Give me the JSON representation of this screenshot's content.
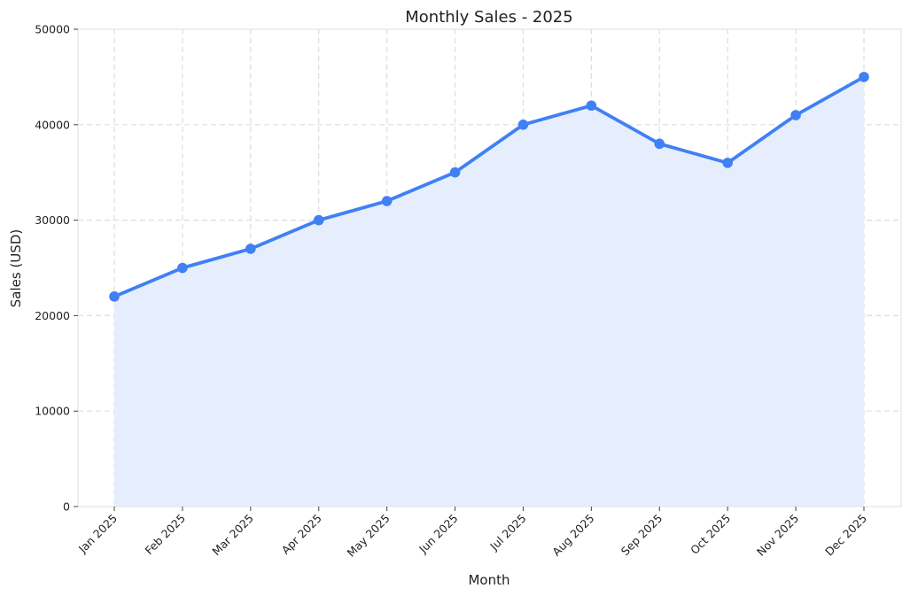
{
  "chart_data": {
    "type": "line",
    "title": "Monthly Sales - 2025",
    "xlabel": "Month",
    "ylabel": "Sales (USD)",
    "categories": [
      "Jan 2025",
      "Feb 2025",
      "Mar 2025",
      "Apr 2025",
      "May 2025",
      "Jun 2025",
      "Jul 2025",
      "Aug 2025",
      "Sep 2025",
      "Oct 2025",
      "Nov 2025",
      "Dec 2025"
    ],
    "series": [
      {
        "values": [
          22000,
          25000,
          27000,
          30000,
          32000,
          35000,
          40000,
          42000,
          38000,
          36000,
          41000,
          45000
        ],
        "color": "#4080f5",
        "fill": "#e6eefd",
        "marker": "circle"
      }
    ],
    "ylim": [
      0,
      50000
    ],
    "yticks": [
      "0",
      "10000",
      "20000",
      "30000",
      "40000",
      "50000"
    ],
    "grid": true,
    "grid_style": "dashed",
    "area_fill": true,
    "legend": false
  }
}
